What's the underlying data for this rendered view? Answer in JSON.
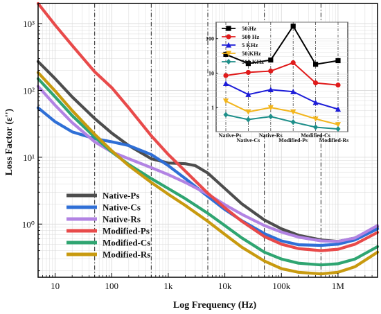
{
  "chart_data": [
    {
      "type": "line",
      "title": "",
      "xlabel": "Log Frequency (Hz)",
      "ylabel": "Loss Factor (ε'')",
      "x_scale": "log",
      "y_scale": "log",
      "xlim": [
        5,
        5000000
      ],
      "ylim": [
        0.16,
        2000
      ],
      "x_ticks": [
        {
          "value": 10,
          "label": "10"
        },
        {
          "value": 100,
          "label": "100"
        },
        {
          "value": 1000,
          "label": "1k"
        },
        {
          "value": 10000,
          "label": "10k"
        },
        {
          "value": 100000,
          "label": "100k"
        },
        {
          "value": 1000000,
          "label": "1M"
        }
      ],
      "y_ticks": [
        {
          "value": 1,
          "label": "10⁰"
        },
        {
          "value": 10,
          "label": "10¹"
        },
        {
          "value": 100,
          "label": "10²"
        },
        {
          "value": 1000,
          "label": "10³"
        }
      ],
      "grid": true,
      "legend_position": "bottom-left",
      "vlines": [
        50,
        500,
        5000,
        50000,
        500000
      ],
      "series": [
        {
          "name": "Native-Ps",
          "color": "#4d4d4d",
          "x": [
            5,
            10,
            20,
            50,
            100,
            200,
            500,
            1000,
            2000,
            3000,
            5000,
            10000,
            20000,
            50000,
            100000,
            200000,
            500000,
            1000000,
            2000000,
            5000000
          ],
          "y": [
            270,
            150,
            80,
            38,
            23,
            15,
            9.5,
            8.2,
            8.0,
            7.5,
            5.8,
            3.4,
            2.0,
            1.15,
            0.85,
            0.68,
            0.58,
            0.55,
            0.62,
            0.92
          ]
        },
        {
          "name": "Native-Cs",
          "color": "#2f6fd6",
          "x": [
            5,
            10,
            20,
            50,
            100,
            200,
            500,
            1000,
            2000,
            5000,
            10000,
            20000,
            50000,
            100000,
            200000,
            500000,
            1000000,
            2000000,
            5000000
          ],
          "y": [
            55,
            34,
            24,
            19,
            17,
            15,
            11,
            7.5,
            4.8,
            2.6,
            1.65,
            1.12,
            0.72,
            0.56,
            0.49,
            0.48,
            0.5,
            0.58,
            0.85
          ]
        },
        {
          "name": "Native-Rs",
          "color": "#b283e3",
          "x": [
            5,
            10,
            20,
            50,
            100,
            200,
            500,
            1000,
            2000,
            5000,
            10000,
            20000,
            50000,
            100000,
            200000,
            500000,
            1000000,
            2000000,
            5000000
          ],
          "y": [
            115,
            60,
            33,
            17,
            12,
            9.5,
            7.0,
            5.5,
            4.2,
            2.8,
            1.95,
            1.4,
            0.95,
            0.76,
            0.64,
            0.56,
            0.55,
            0.62,
            0.95
          ]
        },
        {
          "name": "Modified-Ps",
          "color": "#e84a4a",
          "x": [
            5,
            10,
            20,
            50,
            100,
            200,
            500,
            1000,
            2000,
            5000,
            10000,
            20000,
            50000,
            100000,
            200000,
            500000,
            1000000,
            2000000,
            5000000
          ],
          "y": [
            2000,
            950,
            470,
            190,
            110,
            55,
            21,
            11,
            6.2,
            2.9,
            1.75,
            1.1,
            0.65,
            0.5,
            0.43,
            0.4,
            0.42,
            0.5,
            0.75
          ]
        },
        {
          "name": "Modified-Cs",
          "color": "#2fa571",
          "x": [
            5,
            10,
            20,
            50,
            100,
            200,
            500,
            1000,
            2000,
            5000,
            10000,
            20000,
            50000,
            100000,
            200000,
            500000,
            1000000,
            2000000,
            5000000
          ],
          "y": [
            150,
            80,
            42,
            20,
            12,
            7.8,
            4.8,
            3.4,
            2.4,
            1.45,
            0.95,
            0.62,
            0.38,
            0.3,
            0.26,
            0.245,
            0.255,
            0.3,
            0.46
          ]
        },
        {
          "name": "Modified-Rs",
          "color": "#c89a0f",
          "x": [
            5,
            10,
            20,
            50,
            100,
            200,
            500,
            1000,
            2000,
            5000,
            10000,
            20000,
            50000,
            100000,
            200000,
            500000,
            1000000,
            2000000,
            5000000
          ],
          "y": [
            185,
            98,
            50,
            22,
            12.5,
            7.5,
            4.2,
            2.8,
            1.9,
            1.1,
            0.7,
            0.45,
            0.28,
            0.215,
            0.19,
            0.18,
            0.19,
            0.23,
            0.38
          ]
        }
      ]
    },
    {
      "type": "line",
      "title": "",
      "y_scale": "log",
      "ylim": [
        0.2,
        300
      ],
      "categories": [
        "Native-Ps",
        "Native-Cs",
        "Native-Rs",
        "Modified-Ps",
        "Modified-Cs",
        "Modified-Rs"
      ],
      "y_ticks": [
        {
          "value": 1,
          "label": "1"
        },
        {
          "value": 10,
          "label": "10"
        },
        {
          "value": 100,
          "label": "100"
        }
      ],
      "legend_position": "top-left",
      "series": [
        {
          "name": "50  Hz",
          "color": "#000000",
          "marker": "square",
          "values": [
            35,
            19,
            24,
            230,
            18,
            23
          ]
        },
        {
          "name": "500  Hz",
          "color": "#e01b1b",
          "marker": "circle",
          "values": [
            8.5,
            10.5,
            11.5,
            20,
            5.2,
            4.5
          ]
        },
        {
          "name": "5  KHz",
          "color": "#1c1cd8",
          "marker": "triangle",
          "values": [
            5.0,
            2.4,
            3.3,
            2.9,
            1.4,
            0.9
          ]
        },
        {
          "name": "50 KHz",
          "color": "#f2b51c",
          "marker": "triangle-down",
          "values": [
            1.55,
            0.75,
            1.0,
            0.75,
            0.47,
            0.32
          ]
        },
        {
          "name": "500 KHz",
          "color": "#1e8f8a",
          "marker": "diamond",
          "values": [
            0.62,
            0.45,
            0.55,
            0.38,
            0.27,
            0.24
          ]
        }
      ]
    }
  ]
}
